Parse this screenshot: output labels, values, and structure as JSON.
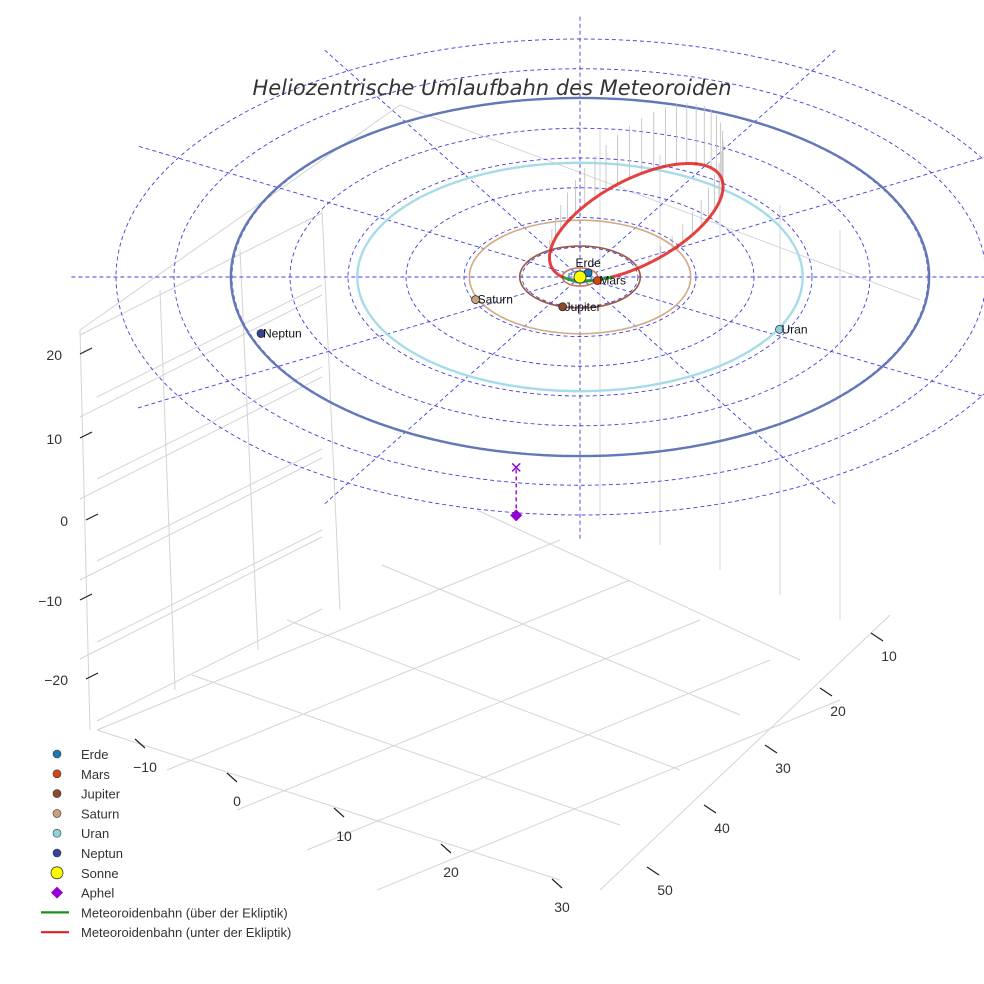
{
  "chart_data": {
    "type": "scatter",
    "title": "Heliozentrische Umlaufbahn des Meteoroiden",
    "x_ticks": [
      "−10",
      "0",
      "10",
      "20",
      "30"
    ],
    "y_ticks": [
      "10",
      "20",
      "30",
      "40",
      "50"
    ],
    "z_ticks": [
      "20",
      "10",
      "0",
      "−10",
      "−20"
    ],
    "planets": [
      {
        "name": "Erde",
        "x": 0.7,
        "y": -0.7,
        "z": 0,
        "color": "#1f77b4",
        "orbit_color": "#5f9fd4"
      },
      {
        "name": "Mars",
        "x": 1.5,
        "y": 0.6,
        "z": 0,
        "color": "#d84315",
        "orbit_color": "#c97a6a"
      },
      {
        "name": "Jupiter",
        "x": -1.5,
        "y": 5.0,
        "z": 0,
        "color": "#8d4a2f",
        "orbit_color": "#a0593e"
      },
      {
        "name": "Saturn",
        "x": -9.0,
        "y": 3.8,
        "z": 0,
        "color": "#c8a07a",
        "orbit_color": "#d2ab84"
      },
      {
        "name": "Uran",
        "x": 17.2,
        "y": 8.8,
        "z": 0,
        "color": "#8fd0e0",
        "orbit_color": "#a6dce8"
      },
      {
        "name": "Neptun",
        "x": -27.5,
        "y": 9.5,
        "z": 0,
        "color": "#33449a",
        "orbit_color": "#6478b8"
      }
    ],
    "orbit_radii": {
      "Erde": 1.0,
      "Mars": 1.52,
      "Jupiter": 5.2,
      "Saturn": 9.54,
      "Uran": 19.2,
      "Neptun": 30.1
    },
    "sun": {
      "name": "Sonne",
      "x": 0,
      "y": 0,
      "z": 0,
      "color": "#ffff00"
    },
    "aphel": {
      "name": "Aphel",
      "x": -5.5,
      "y": 32.0,
      "z": -8.0,
      "color": "#9400d3"
    },
    "meteoroid_orbit": {
      "semi_major_axis": 16.7,
      "eccentricity": 0.94,
      "argument_of_perihelion_deg": 108,
      "inclination_deg": 19,
      "node_longitude_deg": 0
    },
    "legend": [
      {
        "label": "Erde",
        "marker": "dot",
        "color": "#1f77b4"
      },
      {
        "label": "Mars",
        "marker": "dot",
        "color": "#d84315"
      },
      {
        "label": "Jupiter",
        "marker": "dot",
        "color": "#8d4a2f"
      },
      {
        "label": "Saturn",
        "marker": "dot",
        "color": "#c8a07a"
      },
      {
        "label": "Uran",
        "marker": "dot",
        "color": "#8fd0e0"
      },
      {
        "label": "Neptun",
        "marker": "dot",
        "color": "#33449a"
      },
      {
        "label": "Sonne",
        "marker": "big-dot",
        "color": "#ffff00"
      },
      {
        "label": "Aphel",
        "marker": "diamond",
        "color": "#9400d3"
      },
      {
        "label": "Meteoroidenbahn (über der Ekliptik)",
        "marker": "line",
        "color": "#1a8f1a"
      },
      {
        "label": "Meteoroidenbahn (unter der Ekliptik)",
        "marker": "line",
        "color": "#e02020"
      }
    ],
    "colors": {
      "above_ecliptic": "#1a8f1a",
      "below_ecliptic": "#e02020",
      "polar_grid": "#4040d8",
      "axis_grid": "#d4d4d4"
    }
  }
}
